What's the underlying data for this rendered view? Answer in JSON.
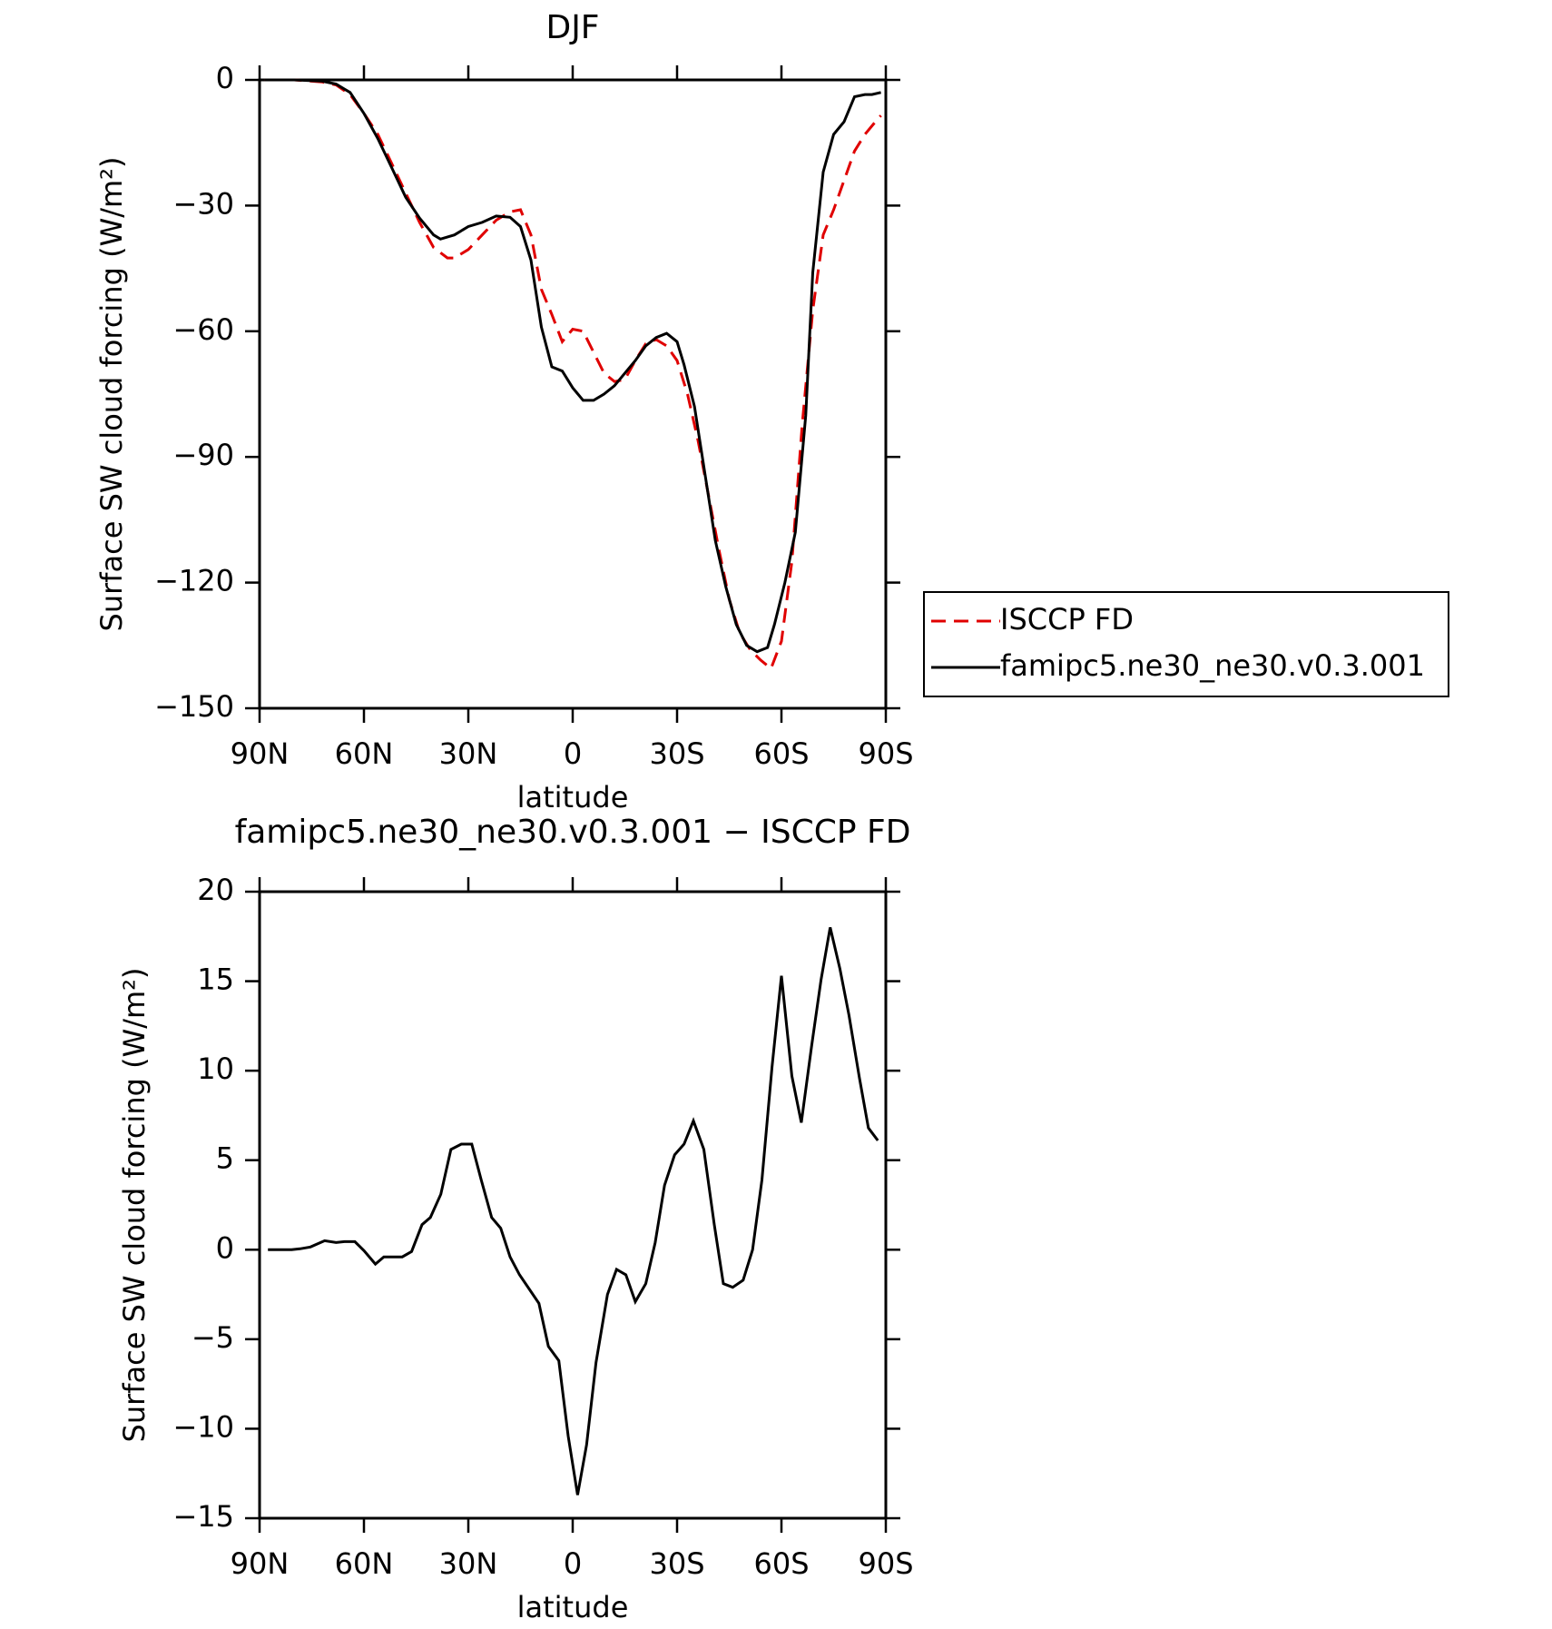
{
  "chart_data": [
    {
      "type": "line",
      "title": "DJF",
      "xlabel": "latitude",
      "ylabel": "Surface SW cloud forcing (W/m²)",
      "xlim": [
        90,
        -90
      ],
      "ylim": [
        -150,
        0
      ],
      "xticks": [
        {
          "value": 90,
          "label": "90N"
        },
        {
          "value": 60,
          "label": "60N"
        },
        {
          "value": 30,
          "label": "30N"
        },
        0,
        {
          "value": -30,
          "label": "30S"
        },
        {
          "value": -60,
          "label": "60S"
        },
        {
          "value": -90,
          "label": "90S"
        }
      ],
      "yticks": [
        0,
        {
          "value": -30,
          "label": "−30"
        },
        {
          "value": -60,
          "label": "−60"
        },
        {
          "value": -90,
          "label": "−90"
        },
        {
          "value": -120,
          "label": "−120"
        },
        {
          "value": -150,
          "label": "−150"
        }
      ],
      "legend": "right",
      "series": [
        {
          "name": "ISCCP FD",
          "color": "#e00000",
          "line_style": "dashed",
          "x": [
            88.6,
            80,
            72,
            68,
            64,
            60,
            56,
            52,
            48,
            44,
            40,
            36,
            34,
            30,
            26,
            22,
            18,
            15,
            12,
            9,
            6,
            3,
            0,
            -3,
            -6,
            -9,
            -12,
            -15,
            -18,
            -21,
            -24,
            -27,
            -30,
            -33,
            -36,
            -39,
            -42,
            -45,
            -48,
            -51,
            -54,
            -57,
            -60,
            -63,
            -66,
            -69,
            -72,
            -75,
            -78,
            -81,
            -84,
            -87,
            -88.6
          ],
          "values": [
            0,
            0,
            -0.5,
            -1.2,
            -3.5,
            -8,
            -13,
            -20,
            -27,
            -34,
            -40,
            -42.5,
            -42.5,
            -40.5,
            -37,
            -33.5,
            -31.5,
            -31,
            -37,
            -50,
            -56,
            -62.5,
            -59.5,
            -60,
            -65,
            -70,
            -72,
            -71.5,
            -67,
            -63,
            -62,
            -63.5,
            -67,
            -75,
            -86,
            -99,
            -112,
            -124,
            -132,
            -136,
            -138.5,
            -140.5,
            -134,
            -115,
            -82,
            -55,
            -37,
            -31,
            -24,
            -17,
            -13,
            -10,
            -8.5
          ]
        },
        {
          "name": "famipc5.ne30_ne30.v0.3.001",
          "color": "#000000",
          "line_style": "solid",
          "x": [
            88.6,
            80,
            72,
            68,
            64,
            60,
            56,
            52,
            48,
            44,
            40,
            38,
            34,
            30,
            26,
            22,
            18,
            15,
            12,
            9,
            6,
            3,
            0,
            -3,
            -6,
            -9,
            -12,
            -15,
            -18,
            -21,
            -24,
            -27,
            -30,
            -32,
            -35,
            -38,
            -41,
            -44,
            -47,
            -50,
            -53,
            -56,
            -58,
            -61,
            -64,
            -67,
            -69,
            -72,
            -75,
            -78,
            -81,
            -84,
            -86,
            -88.6
          ],
          "values": [
            0,
            0,
            -0.3,
            -1,
            -3,
            -8,
            -14,
            -21,
            -28,
            -33,
            -37,
            -38,
            -37,
            -35,
            -34,
            -32.5,
            -32.8,
            -35,
            -43,
            -59,
            -68.5,
            -69.5,
            -73.5,
            -76.5,
            -76.5,
            -75,
            -73,
            -70,
            -67,
            -63.5,
            -61.5,
            -60.5,
            -62.5,
            -68,
            -78,
            -94,
            -110,
            -121,
            -130,
            -135,
            -136.5,
            -135.5,
            -130,
            -120,
            -108,
            -80,
            -46,
            -22,
            -13,
            -10,
            -4,
            -3.5,
            -3.5,
            -3
          ]
        }
      ]
    },
    {
      "type": "line",
      "title": "famipc5.ne30_ne30.v0.3.001 − ISCCP FD",
      "xlabel": "latitude",
      "ylabel": "Surface SW cloud forcing (W/m²)",
      "xlim": [
        90,
        -90
      ],
      "ylim": [
        -15,
        20
      ],
      "xticks": [
        {
          "value": 90,
          "label": "90N"
        },
        {
          "value": 60,
          "label": "60N"
        },
        {
          "value": 30,
          "label": "30N"
        },
        0,
        {
          "value": -30,
          "label": "30S"
        },
        {
          "value": -60,
          "label": "60S"
        },
        {
          "value": -90,
          "label": "90S"
        }
      ],
      "yticks": [
        20,
        15,
        10,
        5,
        0,
        {
          "value": -5,
          "label": "−5"
        },
        {
          "value": -10,
          "label": "−10"
        },
        {
          "value": -15,
          "label": "−15"
        }
      ],
      "color": "#000000",
      "x": [
        87.6,
        80.8,
        78.4,
        75.4,
        71.3,
        68,
        65.6,
        62.6,
        60,
        56.7,
        54.3,
        51.6,
        49,
        46.3,
        43.3,
        40.9,
        37.9,
        35,
        32,
        29,
        26.3,
        23.3,
        20.7,
        18,
        15.3,
        9.7,
        7,
        4,
        1.3,
        -1.4,
        -4,
        -6.7,
        -10,
        -12.6,
        -15.3,
        -18,
        -21,
        -23.7,
        -26.4,
        -29.3,
        -32,
        -34.7,
        -37.7,
        -40.7,
        -43.3,
        -46,
        -49,
        -51.7,
        -54.4,
        -57.3,
        -60,
        -63,
        -65.7,
        -68.7,
        -71.4,
        -74,
        -76.8,
        -79.4,
        -82.4,
        -85,
        -87.7
      ],
      "values": [
        0,
        0,
        0.05,
        0.15,
        0.5,
        0.4,
        0.45,
        0.45,
        -0.05,
        -0.8,
        -0.4,
        -0.4,
        -0.4,
        -0.1,
        1.4,
        1.8,
        3.1,
        5.6,
        5.9,
        5.9,
        3.9,
        1.8,
        1.2,
        -0.4,
        -1.4,
        -3,
        -5.4,
        -6.2,
        -10.4,
        -13.7,
        -10.9,
        -6.3,
        -2.5,
        -1.1,
        -1.4,
        -2.9,
        -1.9,
        0.4,
        3.6,
        5.3,
        5.9,
        7.2,
        5.6,
        1.4,
        -1.9,
        -2.1,
        -1.7,
        0,
        3.9,
        10.2,
        15.3,
        9.7,
        7.1,
        11.4,
        15.1,
        18,
        15.7,
        13.1,
        9.6,
        6.8,
        6.1
      ]
    }
  ]
}
